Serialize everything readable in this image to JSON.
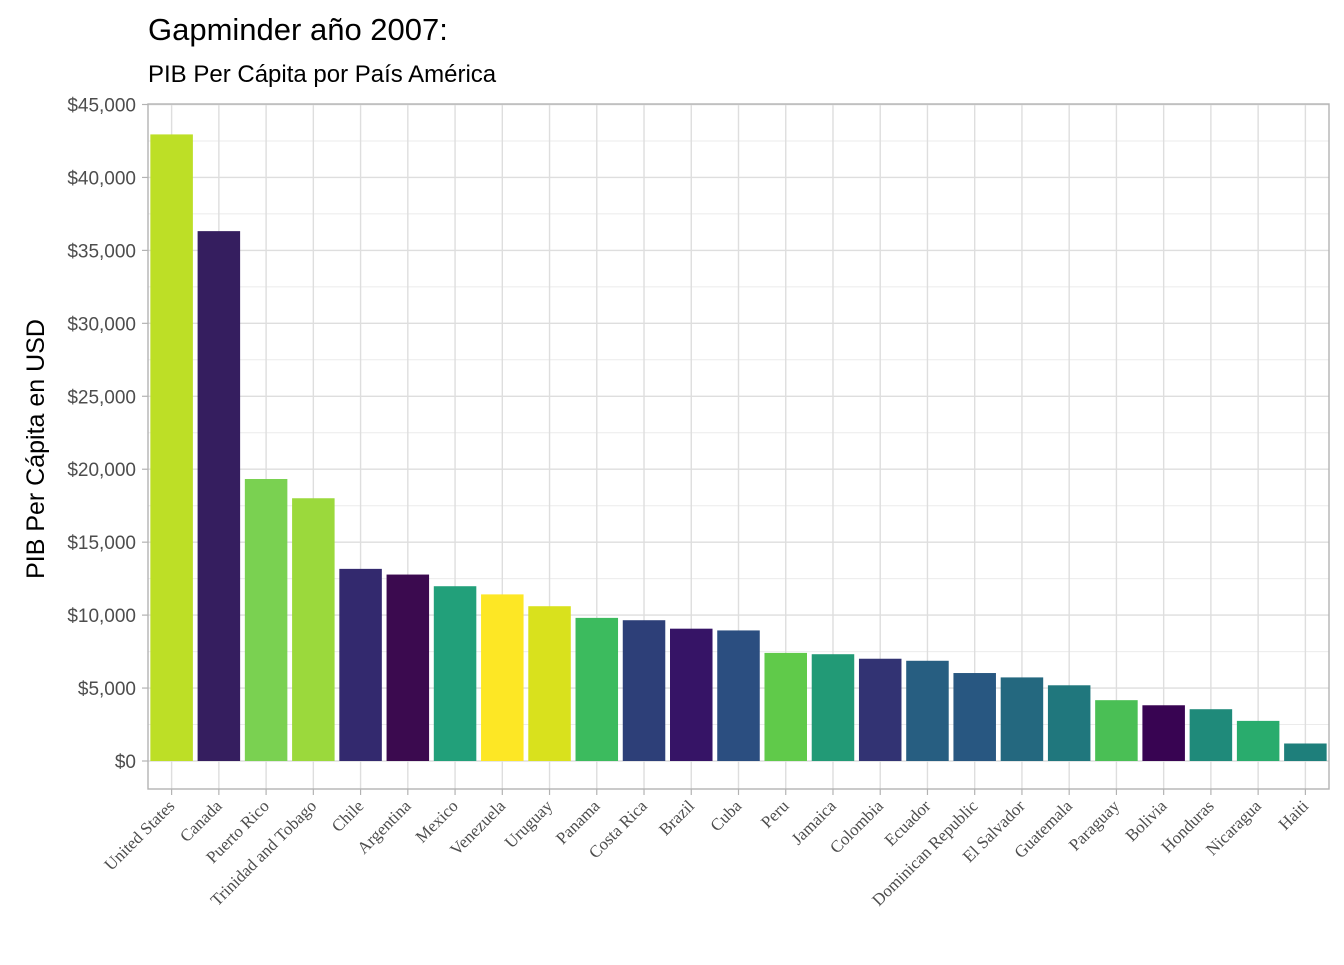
{
  "chart_data": {
    "type": "bar",
    "title": "Gapminder año 2007:",
    "subtitle": "PIB Per Cápita por País América",
    "xlabel": "",
    "ylabel": "PIB Per Cápita en USD",
    "ylim": [
      -2200,
      45000
    ],
    "y_ticks": [
      0,
      5000,
      10000,
      15000,
      20000,
      25000,
      30000,
      35000,
      40000,
      45000
    ],
    "y_tick_labels": [
      "$0",
      "$5,000",
      "$10,000",
      "$15,000",
      "$20,000",
      "$25,000",
      "$30,000",
      "$35,000",
      "$40,000",
      "$45,000"
    ],
    "grid": true,
    "legend": "none",
    "categories": [
      "United States",
      "Canada",
      "Puerto Rico",
      "Trinidad and Tobago",
      "Chile",
      "Argentina",
      "Mexico",
      "Venezuela",
      "Uruguay",
      "Panama",
      "Costa Rica",
      "Brazil",
      "Cuba",
      "Peru",
      "Jamaica",
      "Colombia",
      "Ecuador",
      "Dominican Republic",
      "El Salvador",
      "Guatemala",
      "Paraguay",
      "Bolivia",
      "Honduras",
      "Nicaragua",
      "Haiti"
    ],
    "values": [
      42950,
      36320,
      19330,
      18010,
      13170,
      12780,
      11980,
      11420,
      10610,
      9810,
      9650,
      9070,
      8950,
      7410,
      7320,
      7010,
      6870,
      6030,
      5730,
      5190,
      4170,
      3820,
      3550,
      2750,
      1200
    ],
    "colors": [
      "#BDDF26",
      "#351E5F",
      "#7AD151",
      "#9BD93C",
      "#33296E",
      "#3B0A4F",
      "#22A07A",
      "#FDE725",
      "#D9E11D",
      "#3CBB5E",
      "#2D3F78",
      "#361466",
      "#2B4E80",
      "#60CA4A",
      "#229A76",
      "#323373",
      "#275E81",
      "#285781",
      "#24687F",
      "#20777D",
      "#4ABF55",
      "#380452",
      "#1F8A7A",
      "#29AC6D",
      "#1E7F7B"
    ]
  }
}
